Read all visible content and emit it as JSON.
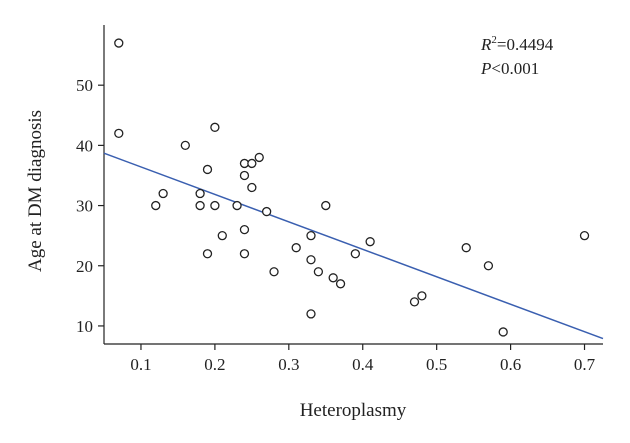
{
  "chart_data": {
    "type": "scatter",
    "title": "",
    "xlabel": "Heteroplasmy",
    "ylabel": "Age at DM diagnosis",
    "xlim": [
      0.05,
      0.725
    ],
    "ylim": [
      7,
      60
    ],
    "xticks": [
      0.1,
      0.2,
      0.3,
      0.4,
      0.5,
      0.6,
      0.7
    ],
    "xtick_labels": [
      "0.1",
      "0.2",
      "0.3",
      "0.4",
      "0.5",
      "0.6",
      "0.7"
    ],
    "yticks": [
      10,
      20,
      30,
      40,
      50
    ],
    "ytick_labels": [
      "10",
      "20",
      "30",
      "40",
      "50"
    ],
    "grid": false,
    "points": [
      [
        0.07,
        57
      ],
      [
        0.07,
        42
      ],
      [
        0.12,
        30
      ],
      [
        0.13,
        32
      ],
      [
        0.16,
        40
      ],
      [
        0.18,
        32
      ],
      [
        0.18,
        30
      ],
      [
        0.19,
        36
      ],
      [
        0.19,
        22
      ],
      [
        0.2,
        43
      ],
      [
        0.2,
        30
      ],
      [
        0.21,
        25
      ],
      [
        0.23,
        30
      ],
      [
        0.24,
        37
      ],
      [
        0.24,
        35
      ],
      [
        0.24,
        26
      ],
      [
        0.24,
        22
      ],
      [
        0.25,
        37
      ],
      [
        0.25,
        33
      ],
      [
        0.26,
        38
      ],
      [
        0.27,
        29
      ],
      [
        0.28,
        19
      ],
      [
        0.31,
        23
      ],
      [
        0.33,
        25
      ],
      [
        0.33,
        21
      ],
      [
        0.33,
        12
      ],
      [
        0.34,
        19
      ],
      [
        0.35,
        30
      ],
      [
        0.36,
        18
      ],
      [
        0.37,
        17
      ],
      [
        0.39,
        22
      ],
      [
        0.41,
        24
      ],
      [
        0.47,
        14
      ],
      [
        0.48,
        15
      ],
      [
        0.54,
        23
      ],
      [
        0.57,
        20
      ],
      [
        0.59,
        9
      ],
      [
        0.7,
        25
      ]
    ],
    "regression": {
      "x": [
        0.05,
        0.725
      ],
      "y": [
        38.7,
        7.9
      ]
    },
    "annotations": {
      "r2_label": "R",
      "r2_sup": "2",
      "r2_value": "=0.4494",
      "p_label": "P",
      "p_value": "<0.001"
    },
    "colors": {
      "fit_line": "#3a5fb0",
      "points": "#222222"
    }
  }
}
